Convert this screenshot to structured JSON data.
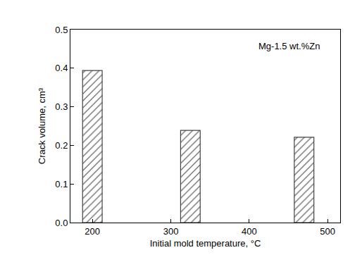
{
  "chart_data": {
    "type": "bar",
    "x": [
      200,
      325,
      470
    ],
    "values": [
      0.394,
      0.239,
      0.221
    ],
    "color": "#444444",
    "xlabel": "Initial mold temperature, °C",
    "ylabel": "Crack volume, cm³",
    "annotations": [
      "Mg-1.5 wt.%Zn"
    ],
    "xlim": [
      172,
      516
    ],
    "xticks": [
      200,
      300,
      400,
      500
    ],
    "ylim": [
      0,
      0.5
    ],
    "yticks": [
      {
        "value": 0,
        "label": "0.0"
      },
      0.1,
      0.2,
      0.3,
      0.4,
      0.5
    ],
    "grid": false
  }
}
